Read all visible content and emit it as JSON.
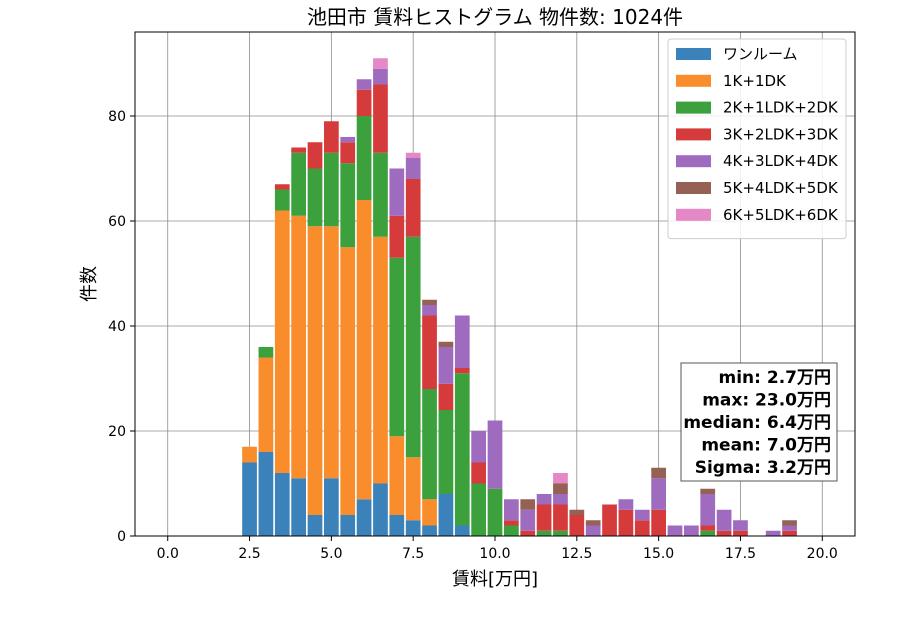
{
  "chart_data": {
    "type": "bar",
    "stacked": true,
    "title": "池田市 賃料ヒストグラム  物件数: 1024件",
    "xlabel": "賃料[万円]",
    "ylabel": "件数",
    "xlim": [
      -1.0,
      21.0
    ],
    "ylim": [
      0,
      96
    ],
    "xticks": [
      "0.0",
      "2.5",
      "5.0",
      "7.5",
      "10.0",
      "12.5",
      "15.0",
      "17.5",
      "20.0"
    ],
    "xtick_values": [
      0,
      2.5,
      5,
      7.5,
      10,
      12.5,
      15,
      17.5,
      20
    ],
    "yticks": [
      "0",
      "20",
      "40",
      "60",
      "80"
    ],
    "ytick_values": [
      0,
      20,
      40,
      60,
      80
    ],
    "bin_width": 0.5,
    "x": [
      2.5,
      3.0,
      3.5,
      4.0,
      4.5,
      5.0,
      5.5,
      6.0,
      6.5,
      7.0,
      7.5,
      8.0,
      8.5,
      9.0,
      9.5,
      10.0,
      10.5,
      11.0,
      11.5,
      12.0,
      12.5,
      13.0,
      13.5,
      14.0,
      14.5,
      15.0,
      15.5,
      16.0,
      16.5,
      17.0,
      17.5,
      18.0,
      18.5,
      19.0
    ],
    "series": [
      {
        "name": "ワンルーム",
        "color": "#3a82b9",
        "values": [
          14,
          16,
          12,
          11,
          4,
          11,
          4,
          7,
          10,
          4,
          3,
          2,
          8,
          2,
          0,
          0,
          0,
          0,
          0,
          0,
          0,
          0,
          0,
          0,
          0,
          0,
          0,
          0,
          0,
          0,
          0,
          0,
          0,
          0
        ]
      },
      {
        "name": "1K+1DK",
        "color": "#f98d2b",
        "values": [
          3,
          18,
          50,
          50,
          55,
          48,
          51,
          57,
          47,
          15,
          12,
          5,
          0,
          0,
          0,
          0,
          0,
          0,
          0,
          0,
          0,
          0,
          0,
          0,
          0,
          0,
          0,
          0,
          0,
          0,
          0,
          0,
          0,
          0
        ]
      },
      {
        "name": "2K+1LDK+2DK",
        "color": "#3ca13c",
        "values": [
          0,
          2,
          4,
          12,
          11,
          14,
          16,
          16,
          16,
          34,
          42,
          21,
          16,
          29,
          10,
          9,
          2,
          0,
          1,
          1,
          0,
          0,
          0,
          0,
          0,
          0,
          0,
          0,
          1,
          0,
          0,
          0,
          0,
          0
        ]
      },
      {
        "name": "3K+2LDK+3DK",
        "color": "#d63b3c",
        "values": [
          0,
          0,
          1,
          1,
          5,
          6,
          4,
          5,
          13,
          8,
          11,
          14,
          5,
          1,
          4,
          0,
          1,
          1,
          5,
          5,
          4,
          0,
          6,
          5,
          3,
          5,
          0,
          0,
          1,
          1,
          1,
          0,
          0,
          1
        ]
      },
      {
        "name": "4K+3LDK+4DK",
        "color": "#9e6bbf",
        "values": [
          0,
          0,
          0,
          0,
          0,
          0,
          1,
          2,
          3,
          9,
          4,
          2,
          7,
          10,
          6,
          13,
          4,
          4,
          2,
          2,
          0,
          2,
          0,
          2,
          2,
          6,
          2,
          2,
          6,
          4,
          2,
          0,
          1,
          1
        ]
      },
      {
        "name": "5K+4LDK+5DK",
        "color": "#946154",
        "values": [
          0,
          0,
          0,
          0,
          0,
          0,
          0,
          0,
          0,
          0,
          0,
          1,
          1,
          0,
          0,
          0,
          0,
          2,
          0,
          2,
          1,
          1,
          0,
          0,
          0,
          2,
          0,
          0,
          1,
          0,
          0,
          0,
          0,
          1
        ]
      },
      {
        "name": "6K+5LDK+6DK",
        "color": "#e588c6",
        "values": [
          0,
          0,
          0,
          0,
          0,
          0,
          0,
          0,
          2,
          0,
          1,
          0,
          0,
          0,
          0,
          0,
          0,
          0,
          0,
          2,
          0,
          0,
          0,
          0,
          0,
          0,
          0,
          0,
          0,
          0,
          0,
          0,
          0,
          0
        ]
      }
    ],
    "grid": true,
    "legend_position": "top-right",
    "stats_position": "bottom-right",
    "stats": [
      "min: 2.7万円",
      "max: 23.0万円",
      "median: 6.4万円",
      "mean: 7.0万円",
      "Sigma: 3.2万円"
    ]
  }
}
